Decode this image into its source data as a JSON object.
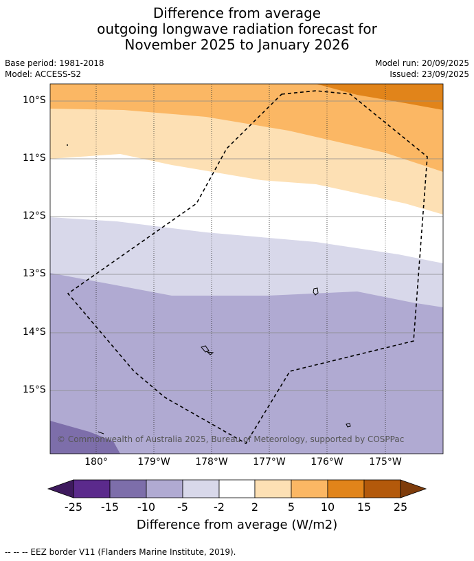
{
  "title": {
    "line1": "Difference from average",
    "line2": "outgoing longwave radiation forecast for",
    "line3": "November 2025 to January 2026"
  },
  "meta": {
    "base_period": "Base period: 1981-2018",
    "model": "Model: ACCESS-S2",
    "model_run": "Model run: 20/09/2025",
    "issued": "Issued: 23/09/2025"
  },
  "axes": {
    "lat_labels": [
      "10°S",
      "11°S",
      "12°S",
      "13°S",
      "14°S",
      "15°S"
    ],
    "lon_labels": [
      "180°",
      "179°W",
      "178°W",
      "177°W",
      "176°W",
      "175°W"
    ]
  },
  "copyright": "© Commonwealth of Australia 2025, Bureau of Meteorology, supported by COSPPac",
  "colorbar": {
    "ticks": [
      "-25",
      "-15",
      "-10",
      "-5",
      "-2",
      "2",
      "5",
      "10",
      "15",
      "25"
    ],
    "colors": [
      "#3e1a5e",
      "#5b2a8c",
      "#7d6eaa",
      "#b0aad2",
      "#d8d8ea",
      "#ffffff",
      "#fde0b4",
      "#fbb764",
      "#e1841a",
      "#b3590b",
      "#7e3c0b"
    ],
    "label": "Difference from average (W/m2)"
  },
  "eez_legend": "--  --  -- EEZ border V11 (Flanders Marine Institute, 2019)."
}
